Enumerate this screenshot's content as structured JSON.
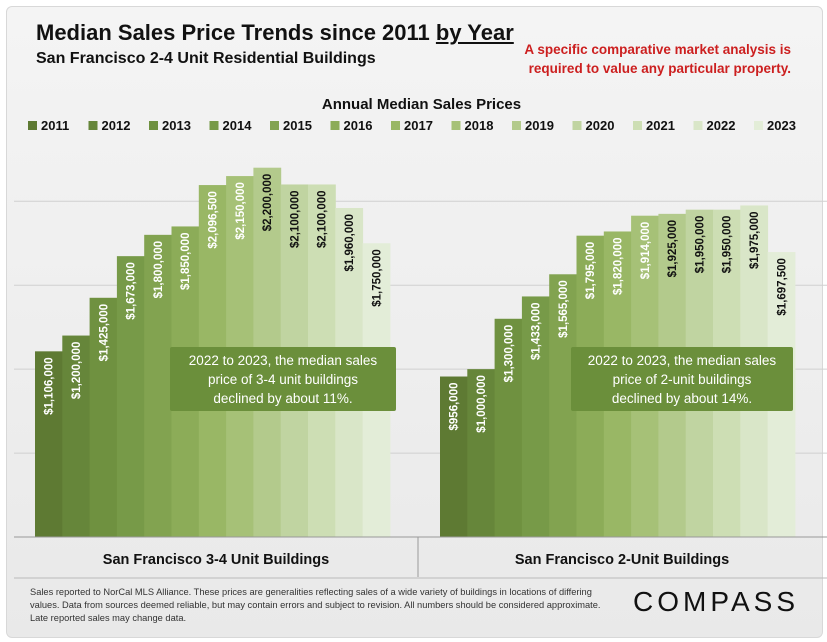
{
  "header": {
    "title_main": "Median Sales Price Trends since 2011",
    "title_underlined": "by Year",
    "subtitle": "San Francisco 2-4 Unit Residential Buildings",
    "disclaimer": "A specific comparative market analysis is required to value any particular property."
  },
  "footer": {
    "footnote": "Sales reported to NorCal MLS Alliance. These prices are generalities reflecting sales of a wide variety of buildings in locations of differing values. Data from sources deemed reliable, but may contain errors and subject to revision. All numbers should be considered approximate. Late reported sales may change data.",
    "logo": "COMPASS"
  },
  "colors": {
    "years": [
      "#5e7a33",
      "#66863a",
      "#6f9140",
      "#779a48",
      "#82a350",
      "#8cac58",
      "#99b765",
      "#a6c177",
      "#b3ca8c",
      "#c0d4a1",
      "#cddeb4",
      "#d9e6c8",
      "#e3edd8"
    ],
    "annotation_box": "#6b8f3b",
    "annotation_text": "#ffffff"
  },
  "chart_data": {
    "type": "bar",
    "title": "Annual Median Sales Prices",
    "legend_position": "top",
    "categories": [
      "San Francisco 3-4 Unit Buildings",
      "San Francisco 2-Unit Buildings"
    ],
    "ylim": [
      0,
      2300000
    ],
    "grid": true,
    "series": [
      {
        "name": "2011",
        "values": [
          1106000,
          956000
        ],
        "labels": [
          "$1,106,000",
          "$956,000"
        ]
      },
      {
        "name": "2012",
        "values": [
          1200000,
          1000000
        ],
        "labels": [
          "$1,200,000",
          "$1,000,000"
        ]
      },
      {
        "name": "2013",
        "values": [
          1425000,
          1300000
        ],
        "labels": [
          "$1,425,000",
          "$1,300,000"
        ]
      },
      {
        "name": "2014",
        "values": [
          1673000,
          1433000
        ],
        "labels": [
          "$1,673,000",
          "$1,433,000"
        ]
      },
      {
        "name": "2015",
        "values": [
          1800000,
          1565000
        ],
        "labels": [
          "$1,800,000",
          "$1,565,000"
        ]
      },
      {
        "name": "2016",
        "values": [
          1850000,
          1795000
        ],
        "labels": [
          "$1,850,000",
          "$1,795,000"
        ]
      },
      {
        "name": "2017",
        "values": [
          2096500,
          1820000
        ],
        "labels": [
          "$2,096,500",
          "$1,820,000"
        ]
      },
      {
        "name": "2018",
        "values": [
          2150000,
          1914000
        ],
        "labels": [
          "$2,150,000",
          "$1,914,000"
        ]
      },
      {
        "name": "2019",
        "values": [
          2200000,
          1925000
        ],
        "labels": [
          "$2,200,000",
          "$1,925,000"
        ]
      },
      {
        "name": "2020",
        "values": [
          2100000,
          1950000
        ],
        "labels": [
          "$2,100,000",
          "$1,950,000"
        ]
      },
      {
        "name": "2021",
        "values": [
          2100000,
          1950000
        ],
        "labels": [
          "$2,100,000",
          "$1,950,000"
        ]
      },
      {
        "name": "2022",
        "values": [
          1960000,
          1975000
        ],
        "labels": [
          "$1,960,000",
          "$1,975,000"
        ]
      },
      {
        "name": "2023",
        "values": [
          1750000,
          1697500
        ],
        "labels": [
          "$1,750,000",
          "$1,697,500"
        ]
      }
    ],
    "annotations": [
      {
        "group": 0,
        "text": "2022 to 2023, the median sales price of 3-4 unit buildings declined by about 11%."
      },
      {
        "group": 1,
        "text": "2022 to 2023, the median sales price of 2-unit buildings declined by about 14%."
      }
    ]
  }
}
